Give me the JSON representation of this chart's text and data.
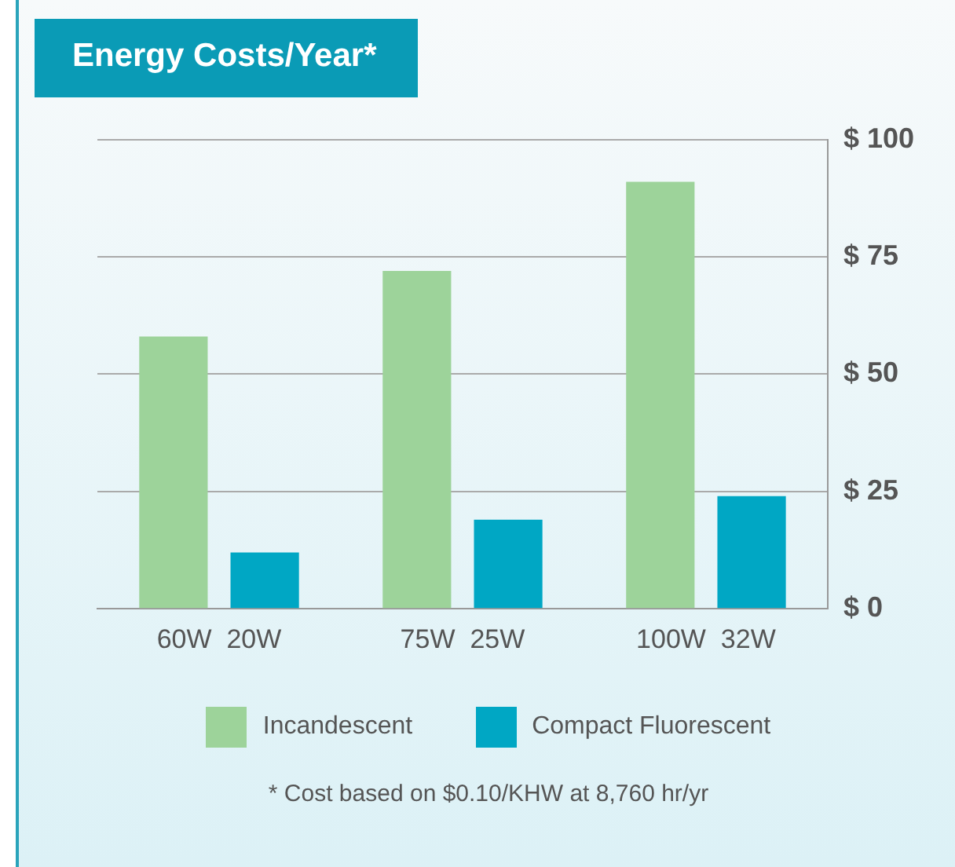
{
  "chart_data": {
    "type": "bar",
    "title": "Energy Costs/Year*",
    "categories": [
      "60W  20W",
      "75W  25W",
      "100W  32W"
    ],
    "series": [
      {
        "name": "Incandescent",
        "color": "#9dd39a",
        "values": [
          58,
          72,
          91
        ]
      },
      {
        "name": "Compact Fluorescent",
        "color": "#00a7c4",
        "values": [
          12,
          19,
          24
        ]
      }
    ],
    "ylim": [
      0,
      100
    ],
    "yticks": [
      {
        "value": 0,
        "label": "$ 0"
      },
      {
        "value": 25,
        "label": "$ 25"
      },
      {
        "value": 50,
        "label": "$ 50"
      },
      {
        "value": 75,
        "label": "$ 75"
      },
      {
        "value": 100,
        "label": "$ 100"
      }
    ],
    "grid": "y",
    "legend": "bottom",
    "annotations": [
      "* Cost based on $0.10/KHW at 8,760 hr/yr"
    ]
  }
}
